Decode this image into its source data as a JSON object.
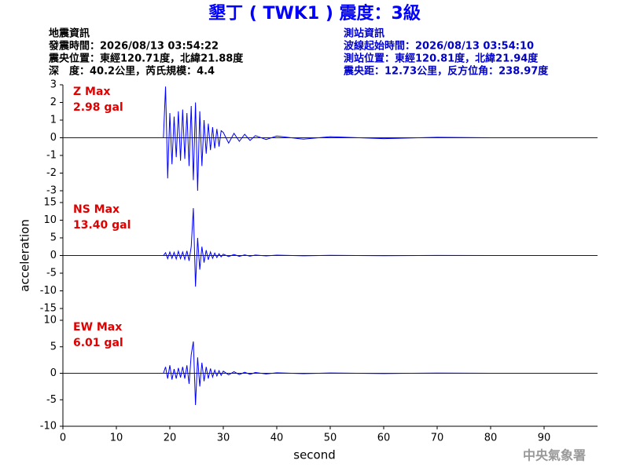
{
  "header": {
    "title": "墾丁 ( TWK1 ) 震度：3級",
    "event_info": [
      "地震資訊",
      "發震時間：2026/08/13 03:54:22",
      "震央位置：東經120.71度，北緯21.88度",
      "深　度：40.2公里，芮氏規模：4.4"
    ],
    "station_info": [
      "測站資訊",
      "波線起始時間：2026/08/13 03:54:10",
      "測站位置：東經120.81度，北緯21.94度",
      "震央距：12.73公里，反方位角：238.97度"
    ],
    "footer": "中央氣象署"
  },
  "chart_data": [
    {
      "type": "line",
      "annotation": [
        "Z Max",
        "2.98 gal"
      ],
      "x": [
        0,
        18.8,
        19.2,
        19.6,
        20,
        20.4,
        20.8,
        21.2,
        21.6,
        22,
        22.4,
        22.8,
        23.2,
        23.6,
        24,
        24.4,
        24.8,
        25.2,
        25.6,
        26,
        26.4,
        26.8,
        27.2,
        27.6,
        28,
        28.4,
        28.8,
        29.2,
        29.6,
        30,
        31,
        32,
        33,
        34,
        35,
        36,
        38,
        40,
        45,
        50,
        60,
        70,
        80,
        100
      ],
      "series": [
        {
          "color": "#0000ff",
          "values": [
            0,
            0,
            2.9,
            -2.3,
            1.4,
            -1.5,
            1.2,
            -1.1,
            1.5,
            -1.3,
            1.6,
            -1.2,
            1.4,
            -1.6,
            1.8,
            -2.4,
            2.0,
            -3.0,
            1.5,
            -1.6,
            1.0,
            -0.9,
            0.8,
            -0.7,
            0.6,
            -0.6,
            0.5,
            -0.5,
            0.4,
            0.3,
            -0.3,
            0.25,
            -0.2,
            0.2,
            -0.15,
            0.12,
            -0.1,
            0.1,
            -0.08,
            0.06,
            -0.05,
            0.03,
            0,
            0
          ]
        }
      ],
      "xlim": [
        0,
        100
      ],
      "ylim": [
        -3,
        3
      ],
      "yticks": [
        -3,
        -2,
        -1,
        0,
        1,
        2,
        3
      ]
    },
    {
      "type": "line",
      "annotation": [
        "NS Max",
        "13.40 gal"
      ],
      "ylabel": "acceleration",
      "x": [
        0,
        18.8,
        19.2,
        19.6,
        20,
        20.4,
        20.8,
        21.2,
        21.6,
        22,
        22.4,
        22.8,
        23.2,
        23.6,
        24,
        24.4,
        24.8,
        25.2,
        25.6,
        26,
        26.4,
        26.8,
        27.2,
        27.6,
        28,
        28.4,
        28.8,
        29.2,
        29.6,
        30,
        31,
        32,
        33,
        34,
        35,
        36,
        38,
        40,
        45,
        50,
        60,
        70,
        80,
        100
      ],
      "series": [
        {
          "color": "#0000ff",
          "values": [
            0,
            0,
            0.8,
            -0.9,
            1.0,
            -0.8,
            0.9,
            -1.0,
            1.2,
            -0.9,
            1.0,
            -1.1,
            1.3,
            -1.5,
            2.5,
            13.4,
            -8.8,
            5.0,
            -4.0,
            2.5,
            -2.0,
            1.5,
            -1.2,
            1.0,
            -0.8,
            0.7,
            -0.6,
            0.5,
            -0.4,
            0.4,
            -0.3,
            0.3,
            -0.25,
            0.2,
            -0.2,
            0.15,
            -0.12,
            0.1,
            -0.08,
            0.06,
            -0.05,
            0.03,
            0,
            0
          ]
        }
      ],
      "xlim": [
        0,
        100
      ],
      "ylim": [
        -15,
        15
      ],
      "yticks": [
        -15,
        -10,
        -5,
        0,
        5,
        10,
        15
      ]
    },
    {
      "type": "line",
      "annotation": [
        "EW Max",
        "6.01 gal"
      ],
      "xlabel": "second",
      "x": [
        0,
        18.8,
        19.2,
        19.6,
        20,
        20.4,
        20.8,
        21.2,
        21.6,
        22,
        22.4,
        22.8,
        23.2,
        23.6,
        24,
        24.4,
        24.8,
        25.2,
        25.6,
        26,
        26.4,
        26.8,
        27.2,
        27.6,
        28,
        28.4,
        28.8,
        29.2,
        29.6,
        30,
        31,
        32,
        33,
        34,
        35,
        36,
        38,
        40,
        45,
        50,
        60,
        70,
        80,
        100
      ],
      "series": [
        {
          "color": "#0000ff",
          "values": [
            0,
            0,
            1.2,
            -1.0,
            1.5,
            -1.2,
            0.8,
            -1.0,
            1.0,
            -0.8,
            1.2,
            -1.0,
            1.5,
            -2.0,
            3.5,
            6.0,
            -6.0,
            3.0,
            -2.5,
            2.0,
            -1.5,
            1.2,
            -1.0,
            0.9,
            -0.7,
            0.6,
            -0.5,
            0.5,
            -0.4,
            0.4,
            -0.3,
            0.3,
            -0.25,
            0.2,
            -0.2,
            0.15,
            -0.12,
            0.1,
            -0.08,
            0.06,
            -0.05,
            0.03,
            0,
            0
          ]
        }
      ],
      "xlim": [
        0,
        100
      ],
      "ylim": [
        -10,
        10
      ],
      "yticks": [
        -10,
        -5,
        0,
        5,
        10
      ],
      "xticks": [
        0,
        10,
        20,
        30,
        40,
        50,
        60,
        70,
        80,
        90
      ]
    }
  ]
}
